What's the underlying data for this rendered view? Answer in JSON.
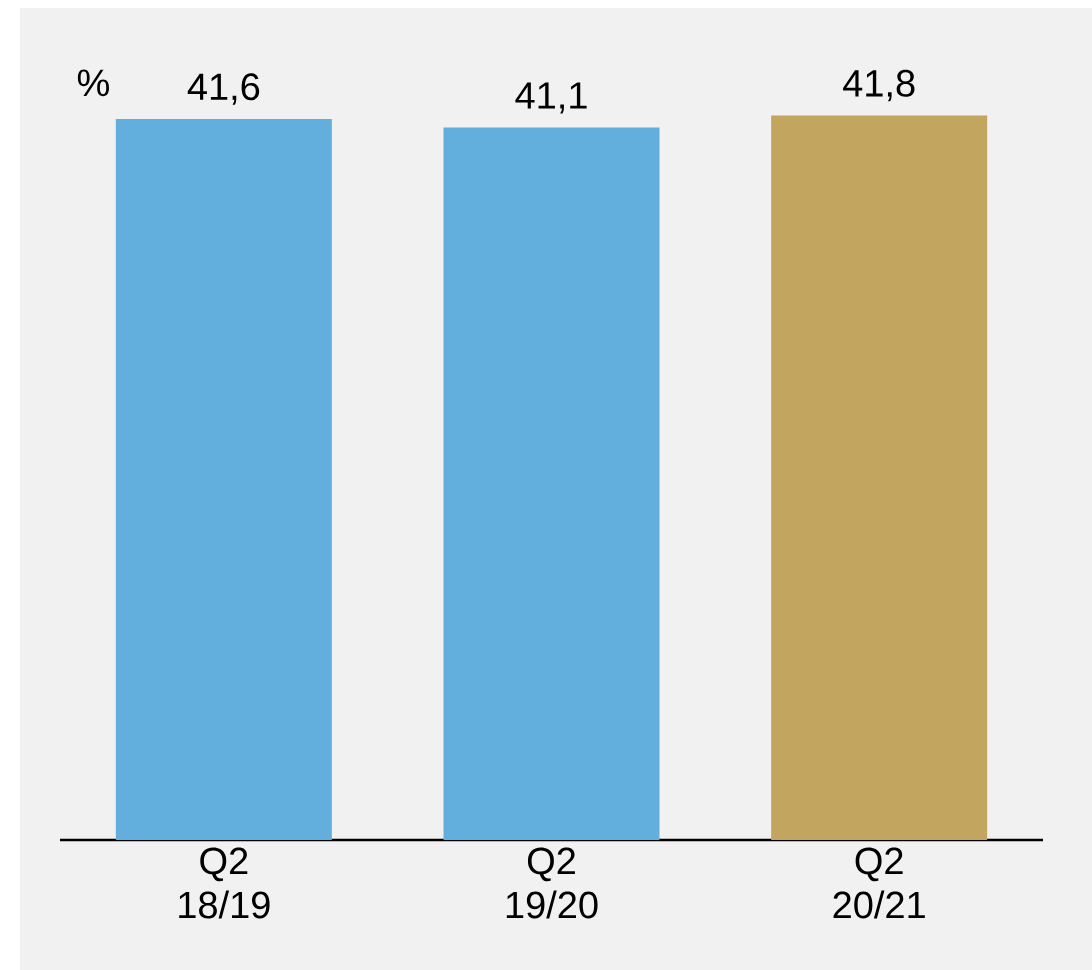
{
  "chart_data": {
    "type": "bar",
    "ylabel": "%",
    "categories": [
      "Q2 18/19",
      "Q2 19/20",
      "Q2 20/21"
    ],
    "values": [
      41.6,
      41.1,
      41.8
    ],
    "colors": [
      "#62aedc",
      "#62aedc",
      "#c2a55e"
    ],
    "value_labels": [
      "41,6",
      "41,1",
      "41,8"
    ],
    "ylim": [
      0,
      48
    ],
    "tick_labels": "x"
  }
}
